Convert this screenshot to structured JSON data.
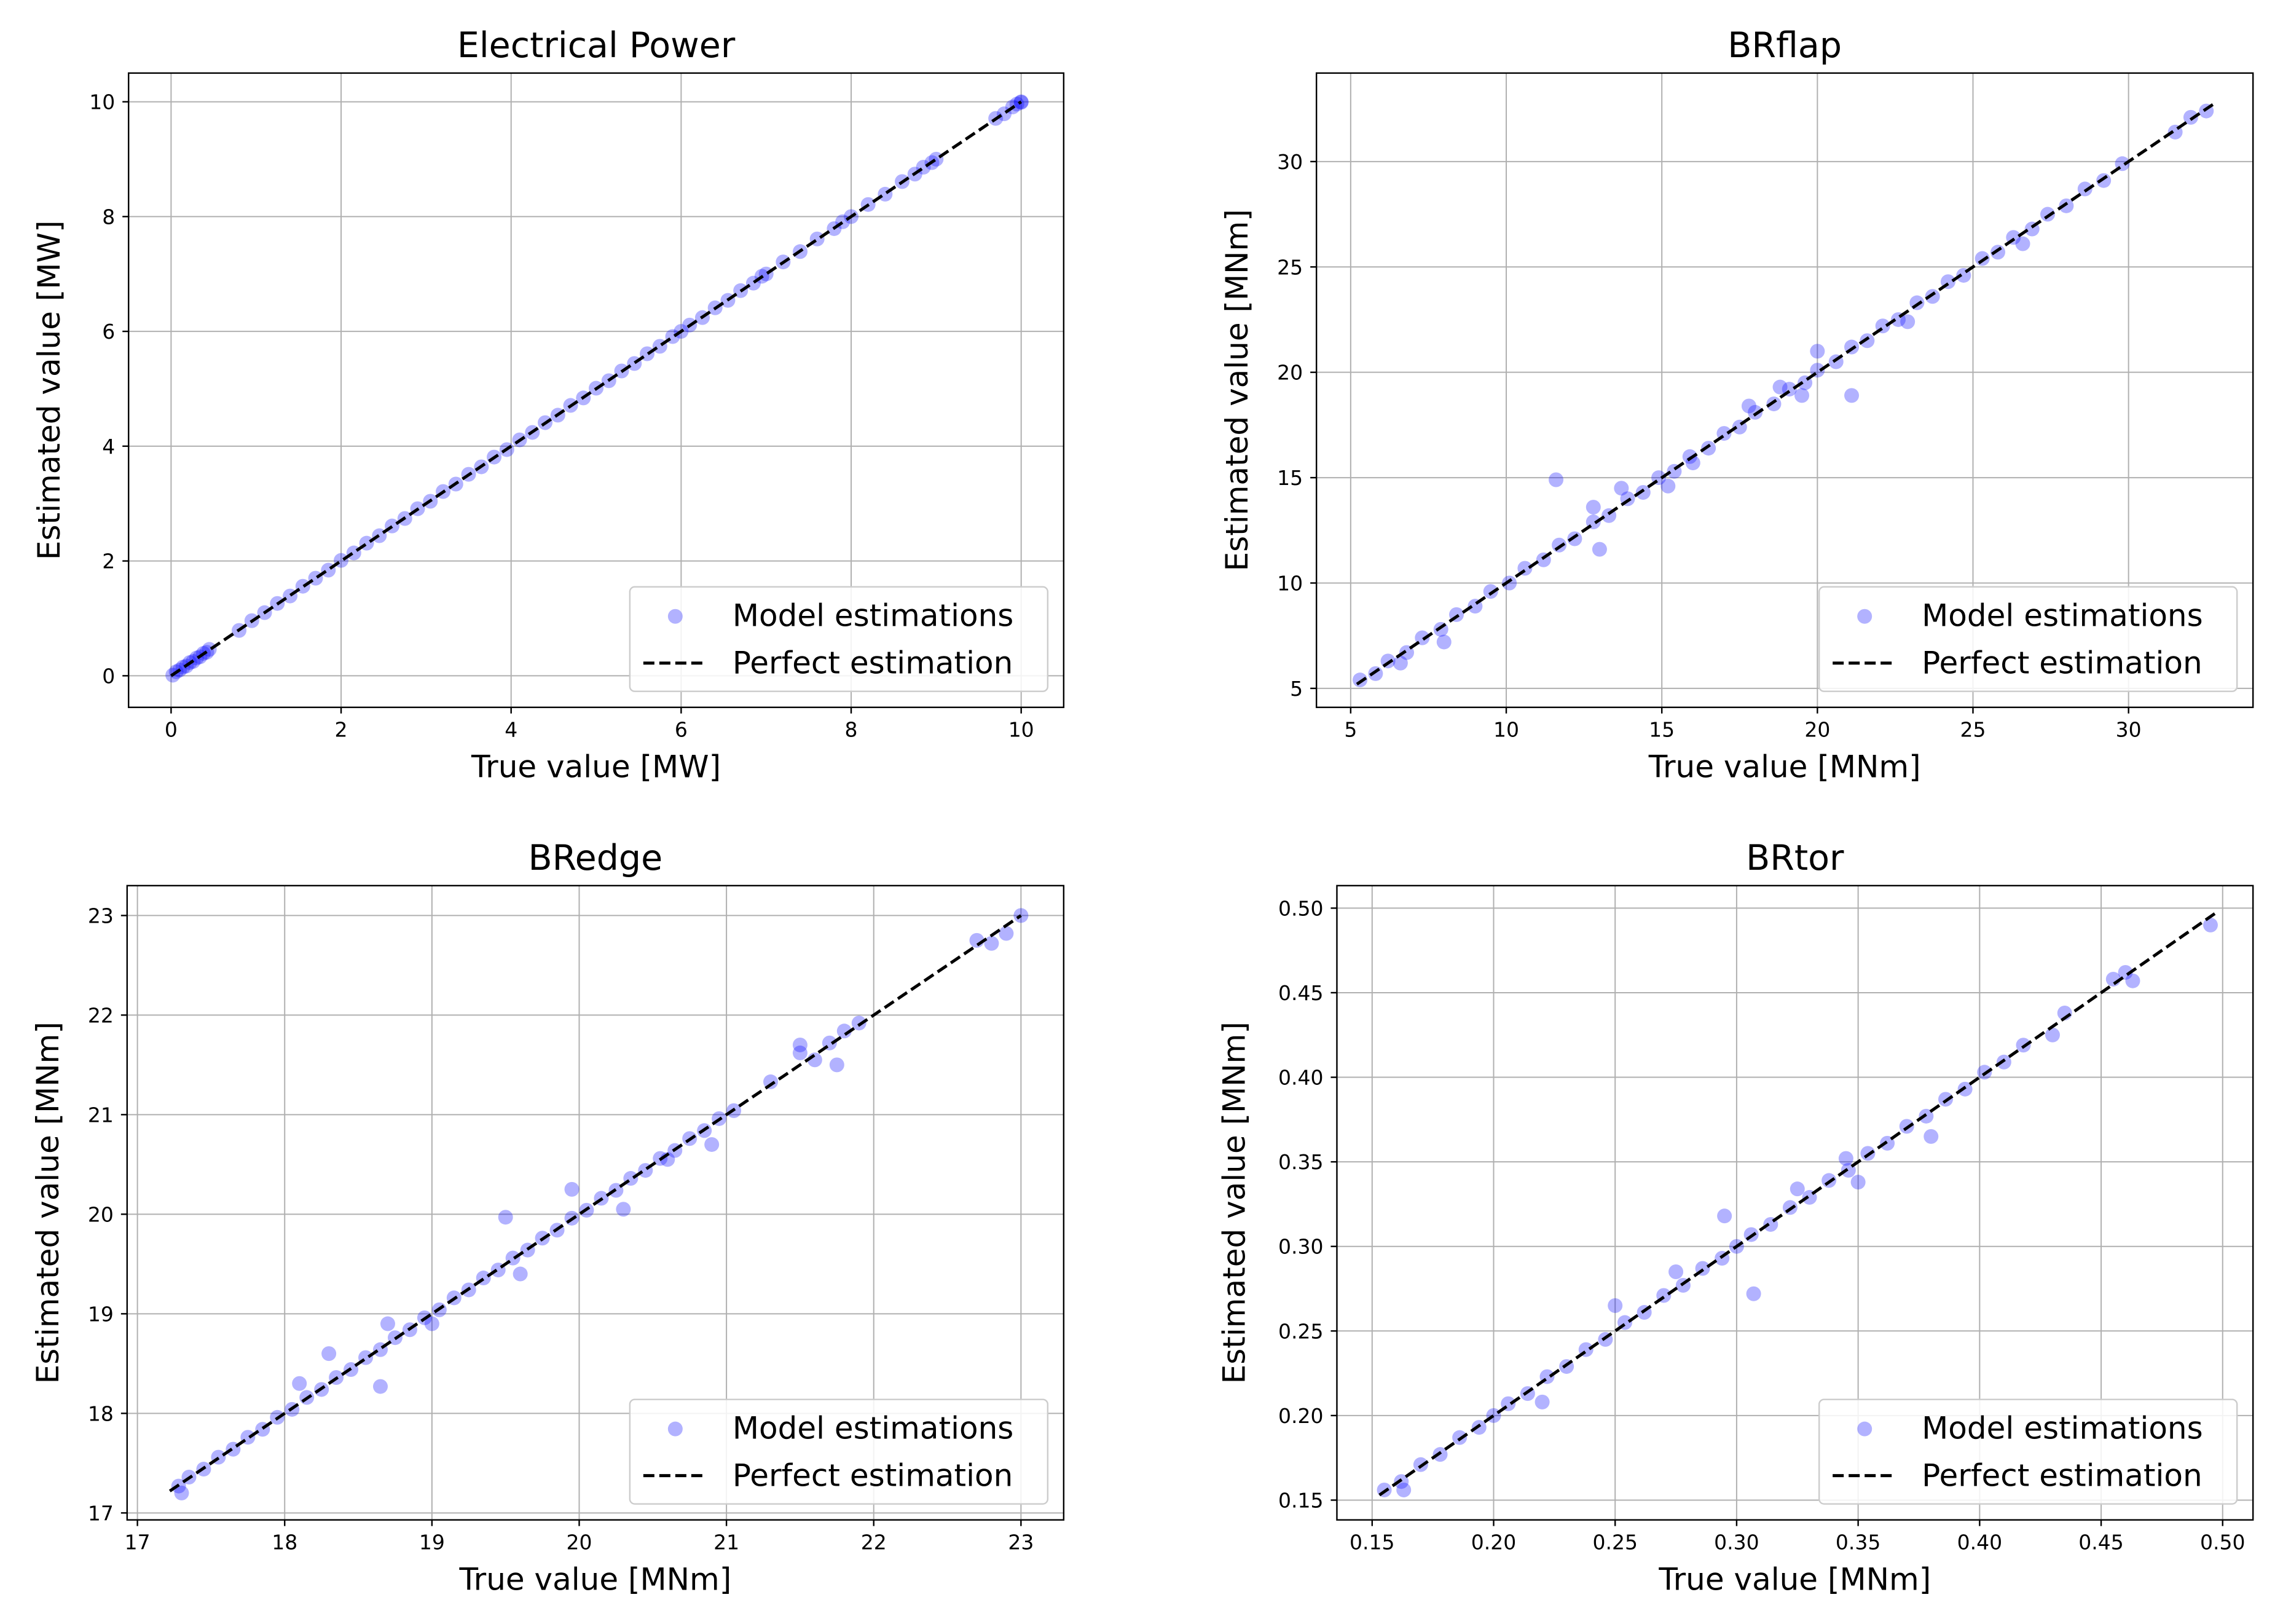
{
  "colors": {
    "points": "#0000ff",
    "reference_line": "#000000",
    "grid": "#b0b0b0",
    "axes": "#000000",
    "legend_border": "#cccccc"
  },
  "legend": {
    "points_label": "Model estimations",
    "line_label": "Perfect estimation",
    "placement": "lower right"
  },
  "chart_data": [
    {
      "type": "scatter",
      "title": "Electrical Power",
      "xlabel": "True value [MW]",
      "ylabel": "Estimated value [MW]",
      "xlim": [
        -0.5,
        10.5
      ],
      "ylim": [
        -0.55,
        10.5
      ],
      "xticks": [
        0,
        2,
        4,
        6,
        8,
        10
      ],
      "xtick_labels": [
        "0",
        "2",
        "4",
        "6",
        "8",
        "10"
      ],
      "yticks": [
        0,
        2,
        4,
        6,
        8,
        10
      ],
      "ytick_labels": [
        "0",
        "2",
        "4",
        "6",
        "8",
        "10"
      ],
      "grid": true,
      "reference_line": [
        [
          0,
          0
        ],
        [
          10,
          10
        ]
      ],
      "series": [
        {
          "name": "Model estimations",
          "x": [
            0.02,
            0.06,
            0.1,
            0.14,
            0.18,
            0.22,
            0.26,
            0.3,
            0.34,
            0.38,
            0.42,
            0.45,
            0.8,
            0.95,
            1.1,
            1.25,
            1.4,
            1.55,
            1.7,
            1.85,
            2.0,
            2.15,
            2.3,
            2.45,
            2.6,
            2.75,
            2.9,
            3.05,
            3.2,
            3.35,
            3.5,
            3.65,
            3.8,
            3.95,
            4.1,
            4.25,
            4.4,
            4.55,
            4.7,
            4.85,
            5.0,
            5.15,
            5.3,
            5.45,
            5.6,
            5.75,
            5.9,
            6.0,
            6.1,
            6.25,
            6.4,
            6.55,
            6.7,
            6.85,
            6.95,
            7.0,
            7.2,
            7.4,
            7.6,
            7.8,
            7.9,
            8.0,
            8.2,
            8.4,
            8.6,
            8.75,
            8.85,
            8.95,
            9.0,
            9.7,
            9.8,
            9.9,
            9.95,
            10.0,
            10.0
          ],
          "y": [
            0.01,
            0.07,
            0.1,
            0.15,
            0.17,
            0.23,
            0.25,
            0.31,
            0.33,
            0.39,
            0.41,
            0.46,
            0.79,
            0.96,
            1.1,
            1.26,
            1.39,
            1.56,
            1.7,
            1.84,
            2.01,
            2.14,
            2.31,
            2.44,
            2.61,
            2.74,
            2.91,
            3.04,
            3.21,
            3.34,
            3.51,
            3.64,
            3.81,
            3.94,
            4.11,
            4.24,
            4.41,
            4.54,
            4.71,
            4.84,
            5.01,
            5.14,
            5.31,
            5.44,
            5.61,
            5.74,
            5.91,
            6.0,
            6.11,
            6.24,
            6.41,
            6.54,
            6.71,
            6.84,
            6.96,
            7.0,
            7.21,
            7.39,
            7.61,
            7.79,
            7.91,
            8.0,
            8.21,
            8.39,
            8.61,
            8.74,
            8.86,
            8.94,
            9.0,
            9.71,
            9.79,
            9.91,
            9.96,
            10.0,
            9.99
          ]
        }
      ]
    },
    {
      "type": "scatter",
      "title": "BRflap",
      "xlabel": "True value [MNm]",
      "ylabel": "Estimated value [MNm]",
      "xlim": [
        3.9,
        34.0
      ],
      "ylim": [
        4.1,
        34.2
      ],
      "xticks": [
        5,
        10,
        15,
        20,
        25,
        30
      ],
      "xtick_labels": [
        "5",
        "10",
        "15",
        "20",
        "25",
        "30"
      ],
      "yticks": [
        5,
        10,
        15,
        20,
        25,
        30
      ],
      "ytick_labels": [
        "5",
        "10",
        "15",
        "20",
        "25",
        "30"
      ],
      "grid": true,
      "reference_line": [
        [
          5.2,
          5.2
        ],
        [
          32.8,
          32.8
        ]
      ],
      "series": [
        {
          "name": "Model estimations",
          "x": [
            5.3,
            5.8,
            6.2,
            6.8,
            7.3,
            7.9,
            8.4,
            9.0,
            9.5,
            10.1,
            10.6,
            11.2,
            11.7,
            12.2,
            12.8,
            13.3,
            13.9,
            14.4,
            14.9,
            15.4,
            15.9,
            16.5,
            17.0,
            17.5,
            18.0,
            18.6,
            19.1,
            19.6,
            20.0,
            20.6,
            21.1,
            21.6,
            22.1,
            22.6,
            23.2,
            23.7,
            24.2,
            24.7,
            25.3,
            25.8,
            26.3,
            26.9,
            27.4,
            28.0,
            28.6,
            29.2,
            29.8,
            31.5,
            32.0,
            32.5,
            11.6,
            13.0,
            21.1,
            20.0,
            12.8,
            15.2,
            17.8,
            19.5,
            6.6,
            8.0,
            16.0,
            22.9,
            26.6,
            13.7,
            18.8
          ],
          "y": [
            5.4,
            5.7,
            6.3,
            6.7,
            7.4,
            7.8,
            8.5,
            8.9,
            9.6,
            10.0,
            10.7,
            11.1,
            11.8,
            12.1,
            12.9,
            13.2,
            14.0,
            14.3,
            15.0,
            15.3,
            16.0,
            16.4,
            17.1,
            17.4,
            18.1,
            18.5,
            19.2,
            19.5,
            20.1,
            20.5,
            21.2,
            21.5,
            22.2,
            22.5,
            23.3,
            23.6,
            24.3,
            24.6,
            25.4,
            25.7,
            26.4,
            26.8,
            27.5,
            27.9,
            28.7,
            29.1,
            29.9,
            31.4,
            32.1,
            32.4,
            14.9,
            11.6,
            18.9,
            21.0,
            13.6,
            14.6,
            18.4,
            18.9,
            6.2,
            7.2,
            15.7,
            22.4,
            26.1,
            14.5,
            19.3
          ]
        }
      ]
    },
    {
      "type": "scatter",
      "title": "BRedge",
      "xlabel": "True value [MNm]",
      "ylabel": "Estimated value [MNm]",
      "xlim": [
        16.93,
        23.29
      ],
      "ylim": [
        16.93,
        23.3
      ],
      "xticks": [
        17,
        18,
        19,
        20,
        21,
        22,
        23
      ],
      "xtick_labels": [
        "17",
        "18",
        "19",
        "20",
        "21",
        "22",
        "23"
      ],
      "yticks": [
        17,
        18,
        19,
        20,
        21,
        22,
        23
      ],
      "ytick_labels": [
        "17",
        "18",
        "19",
        "20",
        "21",
        "22",
        "23"
      ],
      "grid": true,
      "reference_line": [
        [
          17.22,
          17.22
        ],
        [
          23.0,
          23.0
        ]
      ],
      "series": [
        {
          "name": "Model estimations",
          "x": [
            17.28,
            17.35,
            17.45,
            17.55,
            17.65,
            17.75,
            17.85,
            17.95,
            18.05,
            18.15,
            18.25,
            18.35,
            18.45,
            18.55,
            18.65,
            18.75,
            18.85,
            18.95,
            19.05,
            19.15,
            19.25,
            19.35,
            19.45,
            19.55,
            19.65,
            19.75,
            19.85,
            19.95,
            20.05,
            20.15,
            20.25,
            20.35,
            20.45,
            20.55,
            20.65,
            20.75,
            20.85,
            20.95,
            21.05,
            21.3,
            21.5,
            21.6,
            21.7,
            21.8,
            21.9,
            22.7,
            22.8,
            22.9,
            23.0,
            17.3,
            18.3,
            18.1,
            18.65,
            19.5,
            19.0,
            19.95,
            20.3,
            20.6,
            21.75,
            21.5,
            20.9,
            19.6,
            18.7
          ],
          "y": [
            17.27,
            17.36,
            17.44,
            17.56,
            17.64,
            17.76,
            17.84,
            17.96,
            18.04,
            18.16,
            18.24,
            18.36,
            18.44,
            18.56,
            18.64,
            18.76,
            18.84,
            18.96,
            19.04,
            19.16,
            19.24,
            19.36,
            19.44,
            19.56,
            19.64,
            19.76,
            19.84,
            19.96,
            20.04,
            20.16,
            20.24,
            20.36,
            20.44,
            20.56,
            20.64,
            20.76,
            20.84,
            20.96,
            21.04,
            21.33,
            21.62,
            21.55,
            21.72,
            21.84,
            21.92,
            22.75,
            22.72,
            22.82,
            23.0,
            17.2,
            18.6,
            18.3,
            18.27,
            19.97,
            18.9,
            20.25,
            20.05,
            20.55,
            21.5,
            21.7,
            20.7,
            19.4,
            18.9
          ]
        }
      ]
    },
    {
      "type": "scatter",
      "title": "BRtor",
      "xlabel": "True value [MNm]",
      "ylabel": "Estimated value [MNm]",
      "xlim": [
        0.1355,
        0.5125
      ],
      "ylim": [
        0.1383,
        0.5133
      ],
      "xticks": [
        0.15,
        0.2,
        0.25,
        0.3,
        0.35,
        0.4,
        0.45,
        0.5
      ],
      "xtick_labels": [
        "0.15",
        "0.20",
        "0.25",
        "0.30",
        "0.35",
        "0.40",
        "0.45",
        "0.50"
      ],
      "yticks": [
        0.15,
        0.2,
        0.25,
        0.3,
        0.35,
        0.4,
        0.45,
        0.5
      ],
      "ytick_labels": [
        "0.15",
        "0.20",
        "0.25",
        "0.30",
        "0.35",
        "0.40",
        "0.45",
        "0.50"
      ],
      "grid": true,
      "reference_line": [
        [
          0.153,
          0.153
        ],
        [
          0.497,
          0.497
        ]
      ],
      "series": [
        {
          "name": "Model estimations",
          "x": [
            0.155,
            0.162,
            0.17,
            0.178,
            0.186,
            0.194,
            0.2,
            0.206,
            0.214,
            0.222,
            0.23,
            0.238,
            0.246,
            0.254,
            0.262,
            0.27,
            0.278,
            0.286,
            0.294,
            0.3,
            0.306,
            0.314,
            0.322,
            0.33,
            0.338,
            0.346,
            0.354,
            0.362,
            0.37,
            0.378,
            0.386,
            0.394,
            0.402,
            0.41,
            0.418,
            0.43,
            0.435,
            0.455,
            0.46,
            0.463,
            0.495,
            0.163,
            0.295,
            0.307,
            0.25,
            0.275,
            0.38,
            0.35,
            0.22,
            0.325,
            0.345
          ],
          "y": [
            0.156,
            0.161,
            0.171,
            0.177,
            0.187,
            0.193,
            0.2,
            0.207,
            0.213,
            0.223,
            0.229,
            0.239,
            0.245,
            0.255,
            0.261,
            0.271,
            0.277,
            0.287,
            0.293,
            0.3,
            0.307,
            0.313,
            0.323,
            0.329,
            0.339,
            0.345,
            0.355,
            0.361,
            0.371,
            0.377,
            0.387,
            0.393,
            0.403,
            0.409,
            0.419,
            0.425,
            0.438,
            0.458,
            0.462,
            0.457,
            0.49,
            0.156,
            0.318,
            0.272,
            0.265,
            0.285,
            0.365,
            0.338,
            0.208,
            0.334,
            0.352
          ]
        }
      ]
    }
  ]
}
